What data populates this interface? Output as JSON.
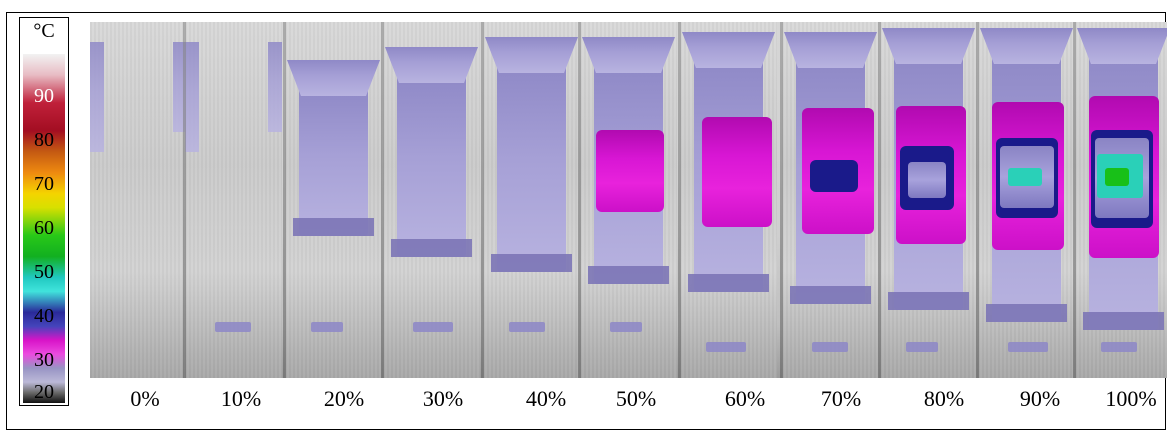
{
  "scale": {
    "unit": "°C",
    "labels": [
      "90",
      "80",
      "70",
      "60",
      "50",
      "40",
      "30",
      "20"
    ]
  },
  "panel": {
    "columns": [
      {
        "label": "0%"
      },
      {
        "label": "10%"
      },
      {
        "label": "20%"
      },
      {
        "label": "30%"
      },
      {
        "label": "40%"
      },
      {
        "label": "50%"
      },
      {
        "label": "60%"
      },
      {
        "label": "70%"
      },
      {
        "label": "80%"
      },
      {
        "label": "90%"
      },
      {
        "label": "100%"
      }
    ]
  },
  "colors": {
    "hot_magenta": "#d816d4",
    "lavender": "#a6a0d6",
    "navy": "#1a1a8a",
    "cyan": "#2ad0b8",
    "green": "#18c018",
    "background_gray": "#cfcfcf"
  }
}
